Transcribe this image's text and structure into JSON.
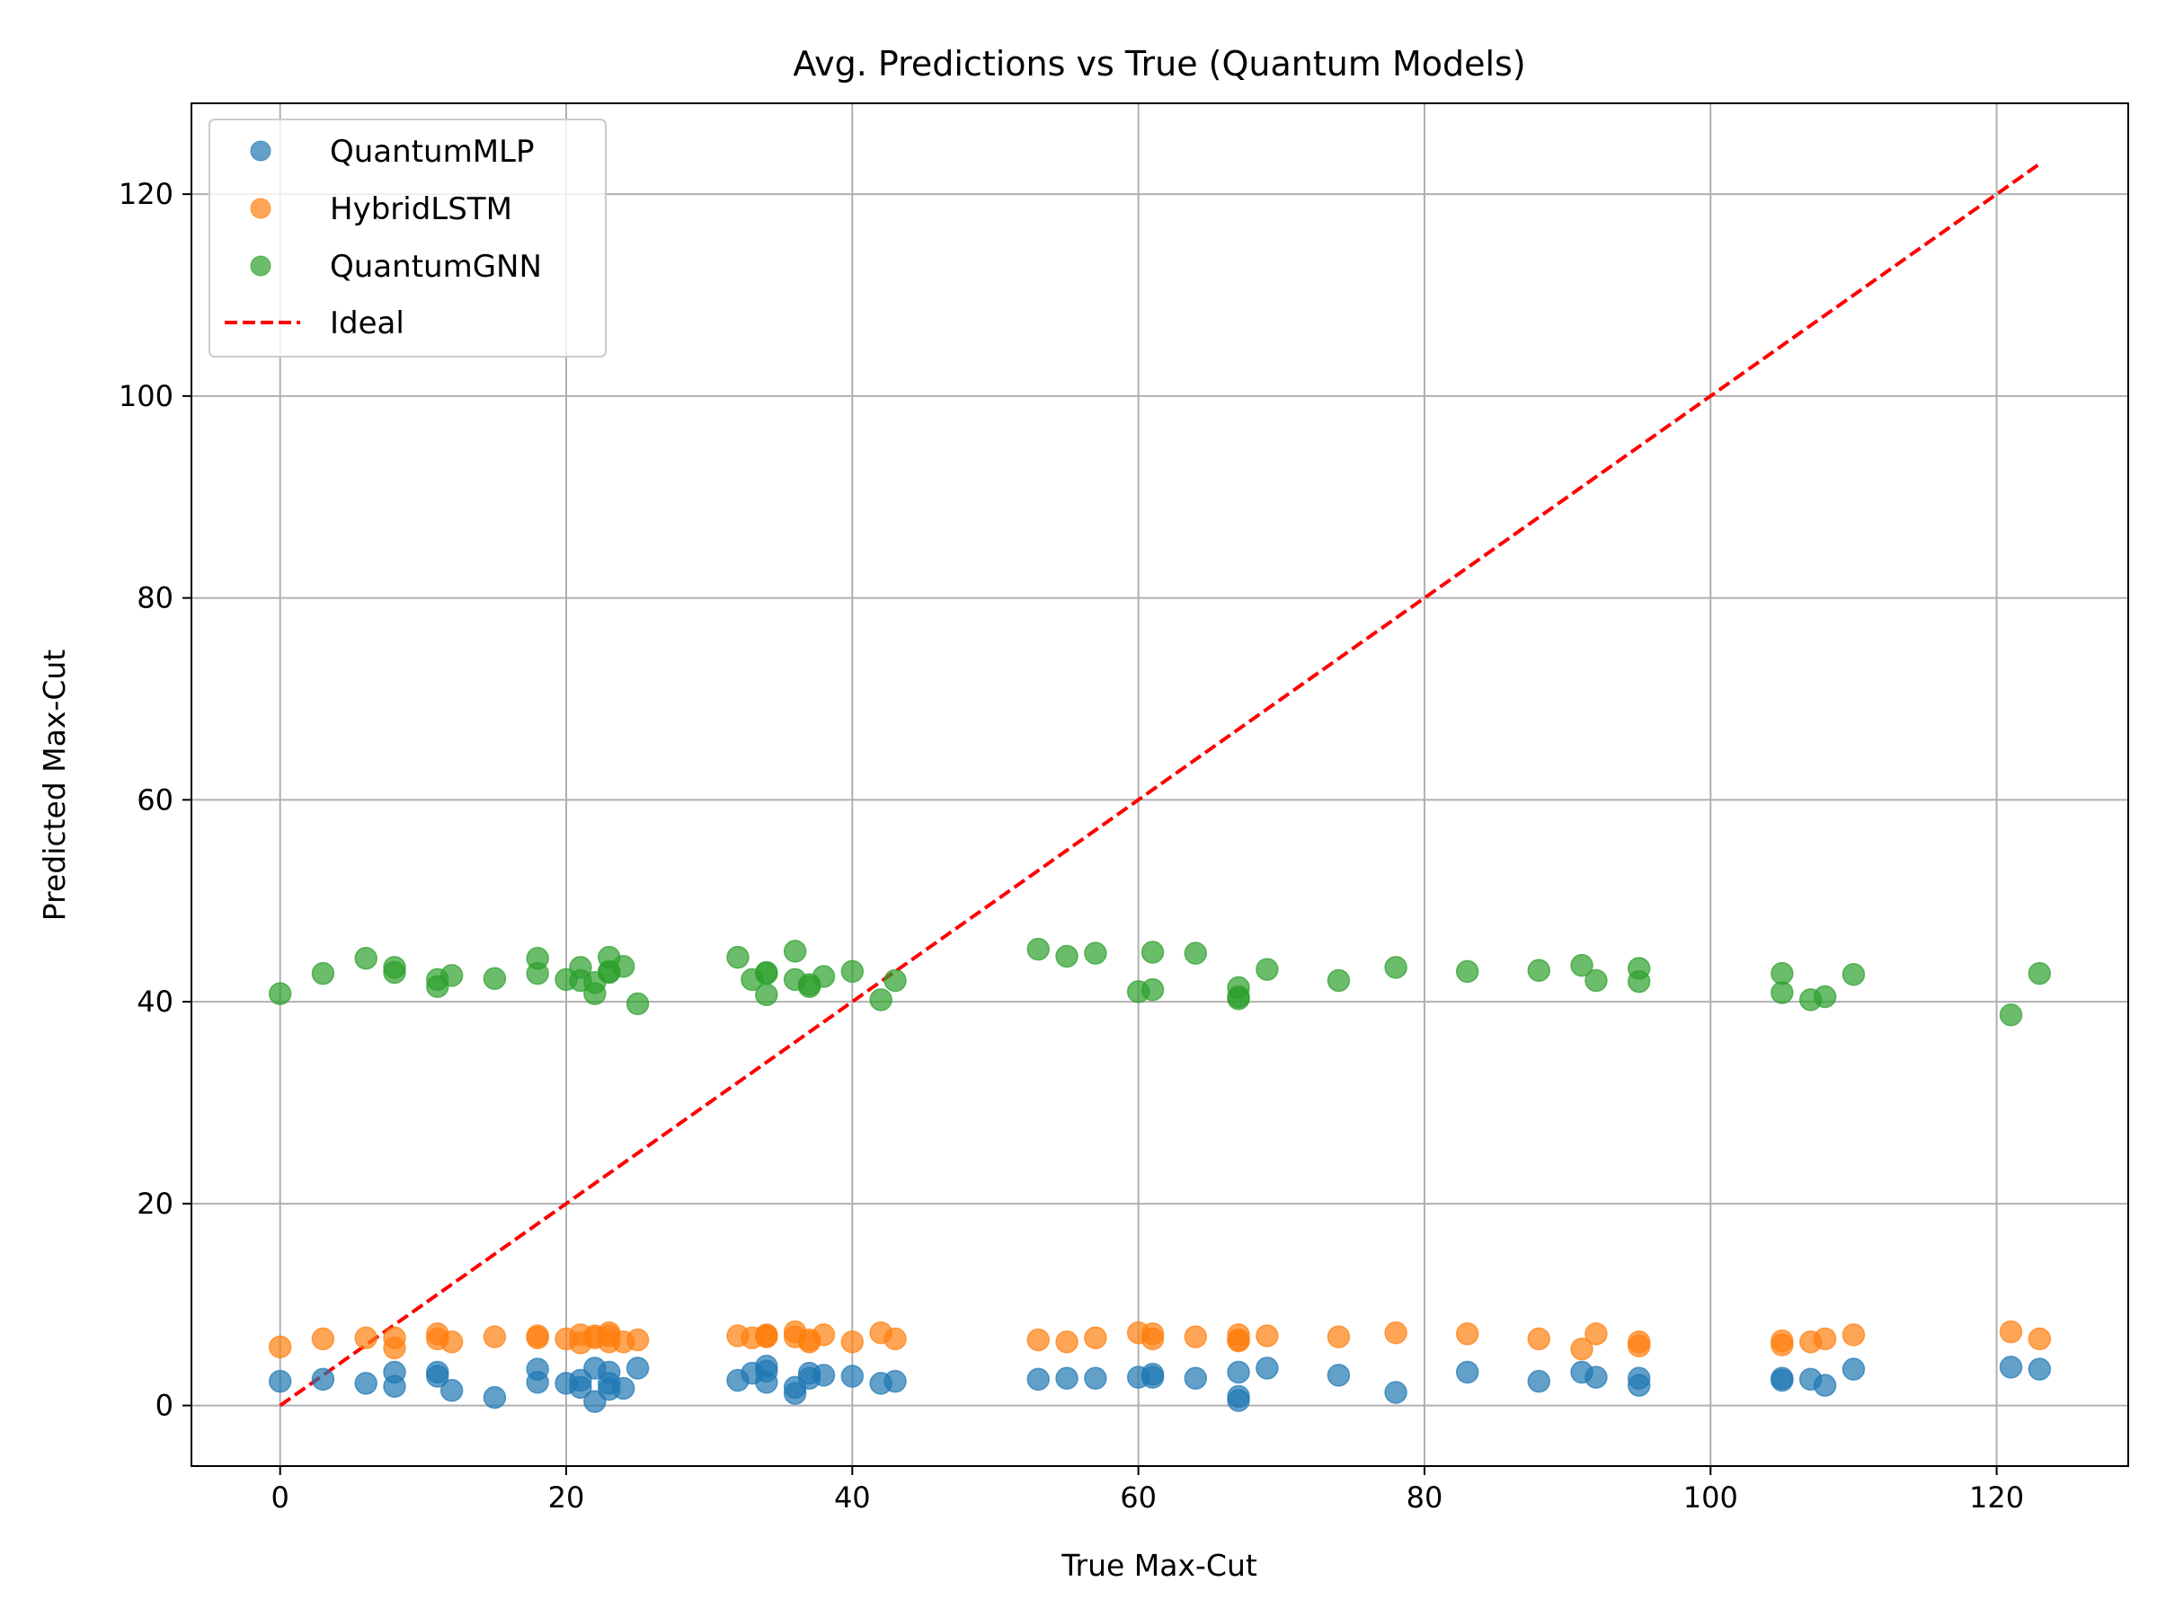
{
  "chart_data": {
    "type": "scatter",
    "title": "Avg. Predictions vs True (Quantum Models)",
    "xlabel": "True Max-Cut",
    "ylabel": "Predicted Max-Cut",
    "xlim": [
      -6.2,
      129.2
    ],
    "ylim": [
      -6,
      129
    ],
    "xticks": [
      0,
      20,
      40,
      60,
      80,
      100,
      120
    ],
    "yticks": [
      0,
      20,
      40,
      60,
      80,
      100,
      120
    ],
    "xtick_labels": [
      "0",
      "20",
      "40",
      "60",
      "80",
      "100",
      "120"
    ],
    "ytick_labels": [
      "0",
      "20",
      "40",
      "60",
      "80",
      "100",
      "120"
    ],
    "grid": true,
    "legend_position": "top-left",
    "x": [
      0,
      3,
      6,
      8,
      8,
      11,
      11,
      12,
      15,
      18,
      18,
      20,
      21,
      21,
      22,
      22,
      23,
      23,
      23,
      24,
      25,
      32,
      33,
      34,
      34,
      34,
      36,
      36,
      37,
      37,
      38,
      40,
      42,
      43,
      53,
      55,
      57,
      60,
      61,
      61,
      64,
      67,
      67,
      67,
      69,
      74,
      78,
      83,
      88,
      91,
      92,
      95,
      95,
      105,
      105,
      107,
      108,
      110,
      121,
      123
    ],
    "series": [
      {
        "name": "QuantumMLP",
        "color": "#1f77b4",
        "values": [
          2.4,
          2.6,
          2.2,
          3.3,
          1.9,
          3.3,
          2.9,
          1.5,
          0.8,
          3.6,
          2.3,
          2.2,
          2.5,
          1.8,
          3.7,
          0.4,
          3.3,
          2.2,
          1.6,
          1.7,
          3.7,
          2.5,
          3.2,
          2.3,
          3.9,
          3.4,
          1.8,
          1.2,
          3.2,
          2.7,
          3.0,
          2.9,
          2.2,
          2.4,
          2.6,
          2.7,
          2.7,
          2.8,
          3.1,
          2.8,
          2.7,
          3.3,
          0.9,
          0.5,
          3.7,
          3.0,
          1.3,
          3.3,
          2.4,
          3.3,
          2.8,
          2.7,
          2.0,
          2.5,
          2.7,
          2.6,
          2.0,
          3.6,
          3.8,
          3.6
        ]
      },
      {
        "name": "HybridLSTM",
        "color": "#ff7f0e",
        "values": [
          5.8,
          6.6,
          6.7,
          5.7,
          6.7,
          7.1,
          6.6,
          6.3,
          6.8,
          6.9,
          6.7,
          6.6,
          7.0,
          6.2,
          6.7,
          6.9,
          7.2,
          6.9,
          6.3,
          6.3,
          6.5,
          6.9,
          6.7,
          6.9,
          6.8,
          7.0,
          6.8,
          7.3,
          6.3,
          6.5,
          7.0,
          6.3,
          7.2,
          6.6,
          6.5,
          6.3,
          6.7,
          7.2,
          7.1,
          6.6,
          6.8,
          7.0,
          6.4,
          6.5,
          6.9,
          6.8,
          7.2,
          7.1,
          6.6,
          5.6,
          7.1,
          6.3,
          5.9,
          6.4,
          6.0,
          6.3,
          6.6,
          7.0,
          7.3,
          6.6
        ]
      },
      {
        "name": "QuantumGNN",
        "color": "#2ca02c",
        "values": [
          40.8,
          42.8,
          44.3,
          43.4,
          42.9,
          41.5,
          42.2,
          42.6,
          42.3,
          44.3,
          42.8,
          42.2,
          43.4,
          42.1,
          40.8,
          41.9,
          43.0,
          44.4,
          42.9,
          43.5,
          39.8,
          44.4,
          42.2,
          42.8,
          40.7,
          42.9,
          45.0,
          42.2,
          41.7,
          41.5,
          42.5,
          43.0,
          40.2,
          42.1,
          45.2,
          44.5,
          44.8,
          41.0,
          41.2,
          44.9,
          44.8,
          41.4,
          40.5,
          40.3,
          43.2,
          42.1,
          43.4,
          43.0,
          43.1,
          43.6,
          42.1,
          43.3,
          42.0,
          42.8,
          40.9,
          40.2,
          40.5,
          42.7,
          38.7,
          42.8
        ]
      }
    ],
    "reference_line": {
      "name": "Ideal",
      "color": "#ff0000",
      "style": "dashed",
      "x": [
        0,
        123
      ],
      "y": [
        0,
        123
      ]
    }
  }
}
